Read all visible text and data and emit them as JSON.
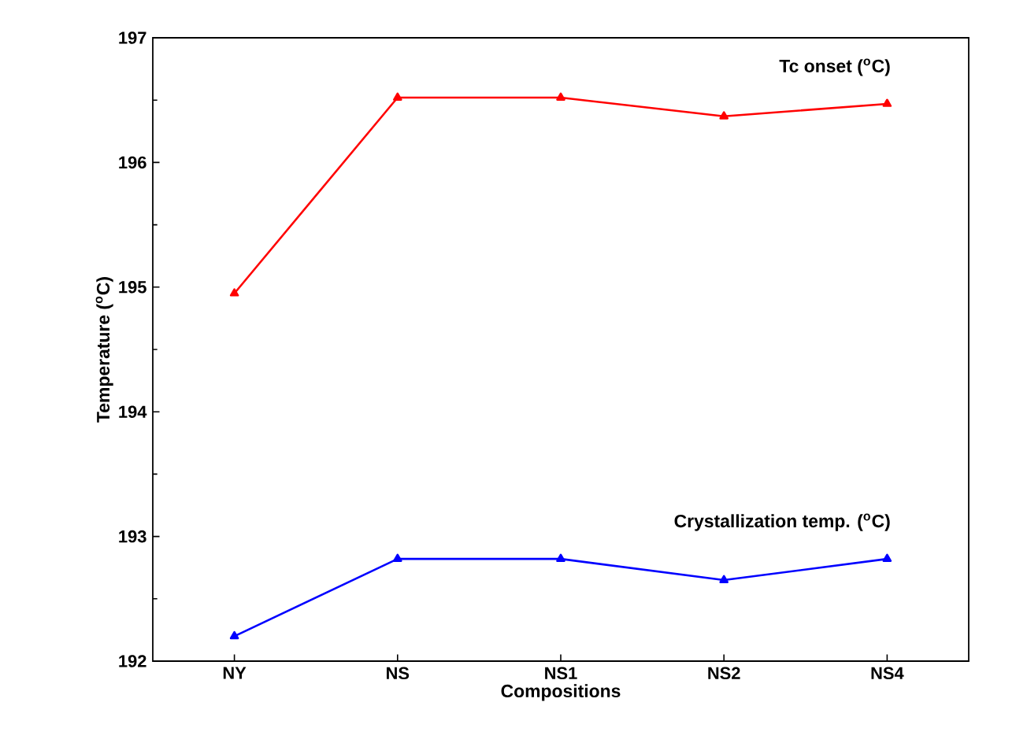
{
  "chart_data": {
    "type": "line",
    "xlabel": "Compositions",
    "ylabel": "Temperature ($^{o}$C)",
    "categories": [
      "NY",
      "NS",
      "NS1",
      "NS2",
      "NS4"
    ],
    "series": [
      {
        "name": "Tc onset ($^{o}$C)",
        "color": "#ff0000",
        "values": [
          194.95,
          196.52,
          196.52,
          196.37,
          196.47
        ]
      },
      {
        "name": "Crystallization temp. ($^{o}$C)",
        "color": "#0000ff",
        "values": [
          192.2,
          192.82,
          192.82,
          192.65,
          192.82
        ]
      }
    ],
    "ylim": [
      192,
      197
    ],
    "yticks": [
      192,
      193,
      194,
      195,
      196,
      197
    ],
    "marker": "triangle",
    "line_style": "solid",
    "legend": false,
    "grid": false
  }
}
